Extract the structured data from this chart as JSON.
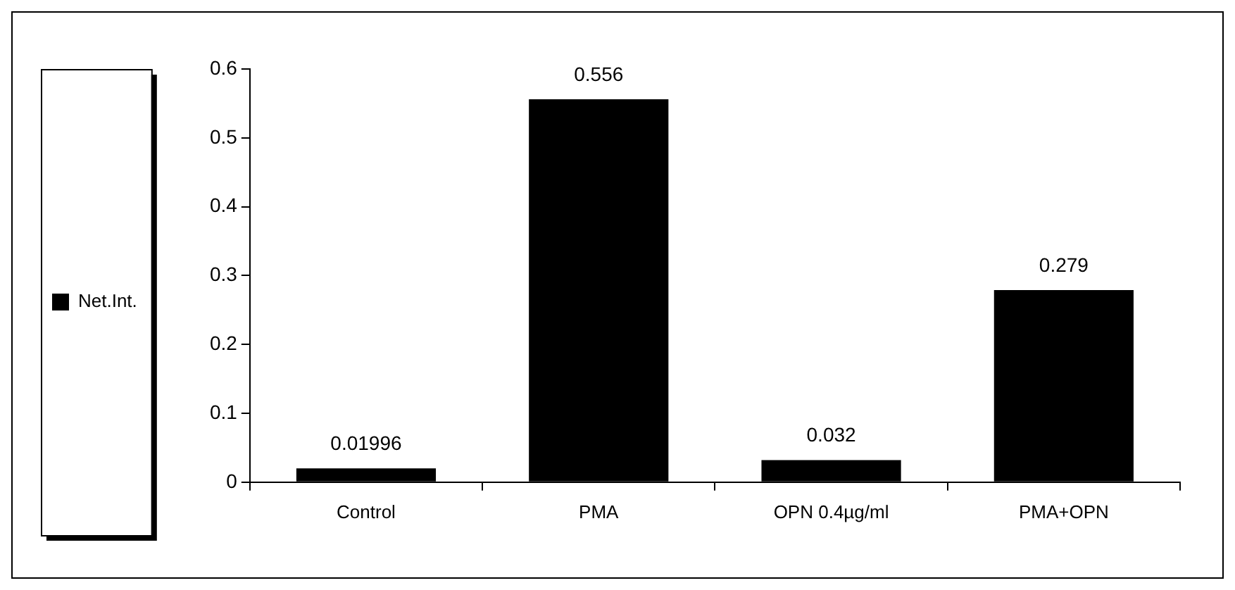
{
  "chart_data": {
    "type": "bar",
    "categories": [
      "Control",
      "PMA",
      "OPN 0.4µg/ml",
      "PMA+OPN"
    ],
    "series": [
      {
        "name": "Net.Int.",
        "color": "#000000",
        "values": [
          0.01996,
          0.556,
          0.032,
          0.279
        ]
      }
    ],
    "ylim": [
      0,
      0.6
    ],
    "yticks": [
      0,
      0.1,
      0.2,
      0.3,
      0.4,
      0.5,
      0.6
    ],
    "grid": false,
    "legend": "left",
    "data_labels": true
  }
}
